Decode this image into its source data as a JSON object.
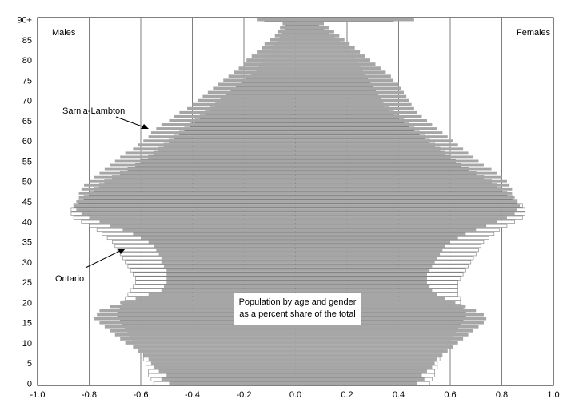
{
  "chart_data": {
    "type": "bar",
    "orientation": "horizontal",
    "layout": "population-pyramid",
    "title": "Population by age and gender\nas a percent share of the total",
    "left_label": "Males",
    "right_label": "Females",
    "xlim": [
      -1.0,
      1.0
    ],
    "ylim": [
      0,
      90
    ],
    "x_ticks": [
      "-1.0",
      "-0.8",
      "-0.6",
      "-0.4",
      "-0.2",
      "0.0",
      "0.2",
      "0.4",
      "0.6",
      "0.8",
      "1.0"
    ],
    "y_ticks": [
      "0",
      "5",
      "10",
      "15",
      "20",
      "25",
      "30",
      "35",
      "40",
      "45",
      "50",
      "55",
      "60",
      "65",
      "70",
      "75",
      "80",
      "85",
      "90+"
    ],
    "grid": "vertical",
    "annotations": [
      {
        "text": "Sarnia-Lambton",
        "target_age": 64,
        "target_side": "males"
      },
      {
        "text": "Ontario",
        "target_age": 33,
        "target_side": "males"
      }
    ],
    "colors": {
      "sarnia_lambton": "#a6a6a6",
      "ontario": "#ffffff",
      "ontario_outline": "#7f7f7f"
    },
    "ages": [
      0,
      1,
      2,
      3,
      4,
      5,
      6,
      7,
      8,
      9,
      10,
      11,
      12,
      13,
      14,
      15,
      16,
      17,
      18,
      19,
      20,
      21,
      22,
      23,
      24,
      25,
      26,
      27,
      28,
      29,
      30,
      31,
      32,
      33,
      34,
      35,
      36,
      37,
      38,
      39,
      40,
      41,
      42,
      43,
      44,
      45,
      46,
      47,
      48,
      49,
      50,
      51,
      52,
      53,
      54,
      55,
      56,
      57,
      58,
      59,
      60,
      61,
      62,
      63,
      64,
      65,
      66,
      67,
      68,
      69,
      70,
      71,
      72,
      73,
      74,
      75,
      76,
      77,
      78,
      79,
      80,
      81,
      82,
      83,
      84,
      85,
      86,
      87,
      88,
      89,
      90
    ],
    "series": [
      {
        "name": "Sarnia-Lambton",
        "males": [
          0.49,
          0.52,
          0.5,
          0.53,
          0.55,
          0.56,
          0.57,
          0.59,
          0.61,
          0.63,
          0.66,
          0.68,
          0.7,
          0.72,
          0.74,
          0.76,
          0.78,
          0.77,
          0.76,
          0.72,
          0.68,
          0.62,
          0.57,
          0.52,
          0.51,
          0.5,
          0.5,
          0.5,
          0.5,
          0.51,
          0.52,
          0.52,
          0.53,
          0.54,
          0.55,
          0.57,
          0.6,
          0.63,
          0.67,
          0.72,
          0.76,
          0.8,
          0.83,
          0.85,
          0.86,
          0.85,
          0.84,
          0.84,
          0.83,
          0.82,
          0.8,
          0.78,
          0.76,
          0.74,
          0.72,
          0.7,
          0.68,
          0.66,
          0.63,
          0.61,
          0.59,
          0.57,
          0.56,
          0.54,
          0.52,
          0.49,
          0.47,
          0.45,
          0.42,
          0.4,
          0.38,
          0.36,
          0.34,
          0.32,
          0.3,
          0.28,
          0.26,
          0.24,
          0.22,
          0.2,
          0.19,
          0.17,
          0.15,
          0.13,
          0.12,
          0.1,
          0.08,
          0.07,
          0.06,
          0.05,
          0.15
        ],
        "females": [
          0.47,
          0.5,
          0.49,
          0.51,
          0.53,
          0.54,
          0.55,
          0.57,
          0.59,
          0.61,
          0.63,
          0.65,
          0.67,
          0.69,
          0.71,
          0.73,
          0.74,
          0.73,
          0.7,
          0.66,
          0.62,
          0.58,
          0.55,
          0.53,
          0.52,
          0.51,
          0.51,
          0.51,
          0.52,
          0.53,
          0.54,
          0.55,
          0.56,
          0.57,
          0.58,
          0.6,
          0.63,
          0.66,
          0.7,
          0.74,
          0.78,
          0.82,
          0.85,
          0.86,
          0.87,
          0.86,
          0.85,
          0.84,
          0.84,
          0.83,
          0.82,
          0.8,
          0.78,
          0.76,
          0.73,
          0.71,
          0.69,
          0.67,
          0.65,
          0.63,
          0.61,
          0.59,
          0.57,
          0.55,
          0.53,
          0.51,
          0.49,
          0.47,
          0.46,
          0.45,
          0.44,
          0.43,
          0.42,
          0.41,
          0.4,
          0.38,
          0.37,
          0.35,
          0.33,
          0.31,
          0.29,
          0.27,
          0.25,
          0.23,
          0.21,
          0.19,
          0.17,
          0.15,
          0.13,
          0.11,
          0.46
        ]
      },
      {
        "name": "Ontario",
        "males": [
          0.55,
          0.56,
          0.57,
          0.57,
          0.58,
          0.58,
          0.59,
          0.59,
          0.6,
          0.61,
          0.62,
          0.63,
          0.64,
          0.65,
          0.66,
          0.67,
          0.68,
          0.69,
          0.69,
          0.68,
          0.67,
          0.66,
          0.65,
          0.64,
          0.63,
          0.62,
          0.62,
          0.63,
          0.64,
          0.65,
          0.66,
          0.67,
          0.68,
          0.69,
          0.7,
          0.71,
          0.73,
          0.75,
          0.77,
          0.8,
          0.83,
          0.86,
          0.87,
          0.87,
          0.86,
          0.84,
          0.82,
          0.8,
          0.78,
          0.76,
          0.74,
          0.71,
          0.68,
          0.65,
          0.62,
          0.6,
          0.57,
          0.55,
          0.53,
          0.51,
          0.49,
          0.47,
          0.45,
          0.43,
          0.41,
          0.39,
          0.37,
          0.35,
          0.33,
          0.31,
          0.29,
          0.27,
          0.25,
          0.23,
          0.21,
          0.19,
          0.17,
          0.15,
          0.14,
          0.13,
          0.12,
          0.11,
          0.1,
          0.09,
          0.08,
          0.07,
          0.06,
          0.05,
          0.04,
          0.04,
          0.12
        ],
        "females": [
          0.52,
          0.53,
          0.54,
          0.54,
          0.55,
          0.55,
          0.56,
          0.56,
          0.57,
          0.58,
          0.59,
          0.6,
          0.61,
          0.62,
          0.63,
          0.64,
          0.65,
          0.66,
          0.66,
          0.65,
          0.64,
          0.64,
          0.63,
          0.63,
          0.63,
          0.63,
          0.64,
          0.65,
          0.66,
          0.67,
          0.68,
          0.69,
          0.7,
          0.71,
          0.72,
          0.73,
          0.75,
          0.77,
          0.79,
          0.82,
          0.85,
          0.88,
          0.89,
          0.89,
          0.88,
          0.86,
          0.84,
          0.82,
          0.8,
          0.78,
          0.76,
          0.73,
          0.7,
          0.67,
          0.64,
          0.62,
          0.6,
          0.58,
          0.56,
          0.54,
          0.52,
          0.5,
          0.48,
          0.46,
          0.44,
          0.42,
          0.4,
          0.38,
          0.36,
          0.34,
          0.33,
          0.32,
          0.31,
          0.3,
          0.29,
          0.28,
          0.27,
          0.26,
          0.25,
          0.24,
          0.23,
          0.22,
          0.21,
          0.2,
          0.19,
          0.17,
          0.15,
          0.13,
          0.11,
          0.09,
          0.38
        ]
      }
    ]
  }
}
